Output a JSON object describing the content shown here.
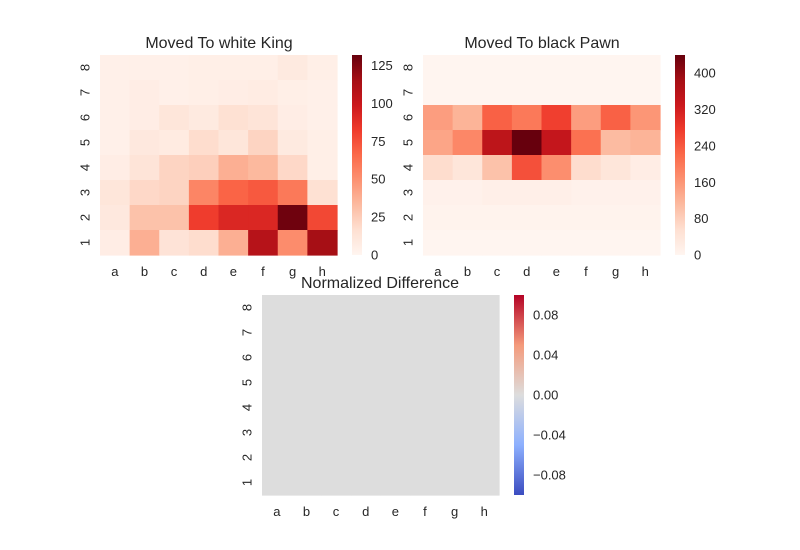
{
  "chart_data": [
    {
      "type": "heatmap",
      "title": "Moved To white King",
      "xticks": [
        "a",
        "b",
        "c",
        "d",
        "e",
        "f",
        "g",
        "h"
      ],
      "yticks": [
        "8",
        "7",
        "6",
        "5",
        "4",
        "3",
        "2",
        "1"
      ],
      "colormap": "Reds",
      "vmin": 0,
      "vmax": 132,
      "colorbar_ticks": [
        0,
        25,
        50,
        75,
        100,
        125
      ],
      "colorbar_labels": [
        "0",
        "25",
        "50",
        "75",
        "100",
        "125"
      ],
      "values": [
        [
          4,
          4,
          4,
          5,
          5,
          5,
          9,
          5
        ],
        [
          4,
          6,
          4,
          5,
          6,
          7,
          5,
          4
        ],
        [
          4,
          6,
          12,
          9,
          16,
          13,
          6,
          4
        ],
        [
          4,
          10,
          8,
          18,
          12,
          22,
          9,
          5
        ],
        [
          6,
          13,
          22,
          24,
          38,
          34,
          20,
          5
        ],
        [
          12,
          20,
          22,
          55,
          68,
          72,
          60,
          16
        ],
        [
          10,
          30,
          30,
          82,
          92,
          92,
          130,
          78
        ],
        [
          6,
          38,
          14,
          18,
          38,
          108,
          52,
          115
        ]
      ]
    },
    {
      "type": "heatmap",
      "title": "Moved To black Pawn",
      "xticks": [
        "a",
        "b",
        "c",
        "d",
        "e",
        "f",
        "g",
        "h"
      ],
      "yticks": [
        "8",
        "7",
        "6",
        "5",
        "4",
        "3",
        "2",
        "1"
      ],
      "colormap": "Reds",
      "vmin": 0,
      "vmax": 440,
      "colorbar_ticks": [
        0,
        80,
        160,
        240,
        320,
        400
      ],
      "colorbar_labels": [
        "0",
        "80",
        "160",
        "240",
        "320",
        "400"
      ],
      "values": [
        [
          0,
          0,
          0,
          0,
          0,
          0,
          0,
          0
        ],
        [
          0,
          0,
          0,
          0,
          0,
          0,
          0,
          0
        ],
        [
          150,
          120,
          230,
          200,
          270,
          150,
          230,
          160
        ],
        [
          140,
          180,
          350,
          440,
          340,
          210,
          110,
          120
        ],
        [
          60,
          40,
          100,
          250,
          170,
          60,
          40,
          20
        ],
        [
          10,
          10,
          15,
          15,
          15,
          10,
          10,
          10
        ],
        [
          5,
          5,
          5,
          5,
          5,
          5,
          5,
          5
        ],
        [
          0,
          0,
          0,
          0,
          0,
          0,
          0,
          0
        ]
      ]
    },
    {
      "type": "heatmap",
      "title": "Normalized Difference",
      "xticks": [
        "a",
        "b",
        "c",
        "d",
        "e",
        "f",
        "g",
        "h"
      ],
      "yticks": [
        "8",
        "7",
        "6",
        "5",
        "4",
        "3",
        "2",
        "1"
      ],
      "colormap": "coolwarm",
      "vmin": -0.1,
      "vmax": 0.1,
      "colorbar_ticks": [
        -0.08,
        -0.04,
        0.0,
        0.04,
        0.08
      ],
      "colorbar_labels": [
        "−0.08",
        "−0.04",
        "0.00",
        "0.04",
        "0.08"
      ],
      "values": [
        [
          0,
          0,
          0,
          0,
          0,
          0,
          0,
          0
        ],
        [
          0,
          0,
          0,
          0,
          0,
          0,
          0,
          0
        ],
        [
          0,
          0,
          0,
          0,
          0,
          0,
          0,
          0
        ],
        [
          0,
          0,
          0,
          0,
          0,
          0,
          0,
          0
        ],
        [
          0,
          0,
          0,
          0,
          0,
          0,
          0,
          0
        ],
        [
          0,
          0,
          0,
          0,
          0,
          0,
          0,
          0
        ],
        [
          0,
          0,
          0,
          0,
          0,
          0,
          0,
          0
        ],
        [
          0,
          0,
          0,
          0,
          0,
          0,
          0,
          0
        ]
      ]
    }
  ]
}
